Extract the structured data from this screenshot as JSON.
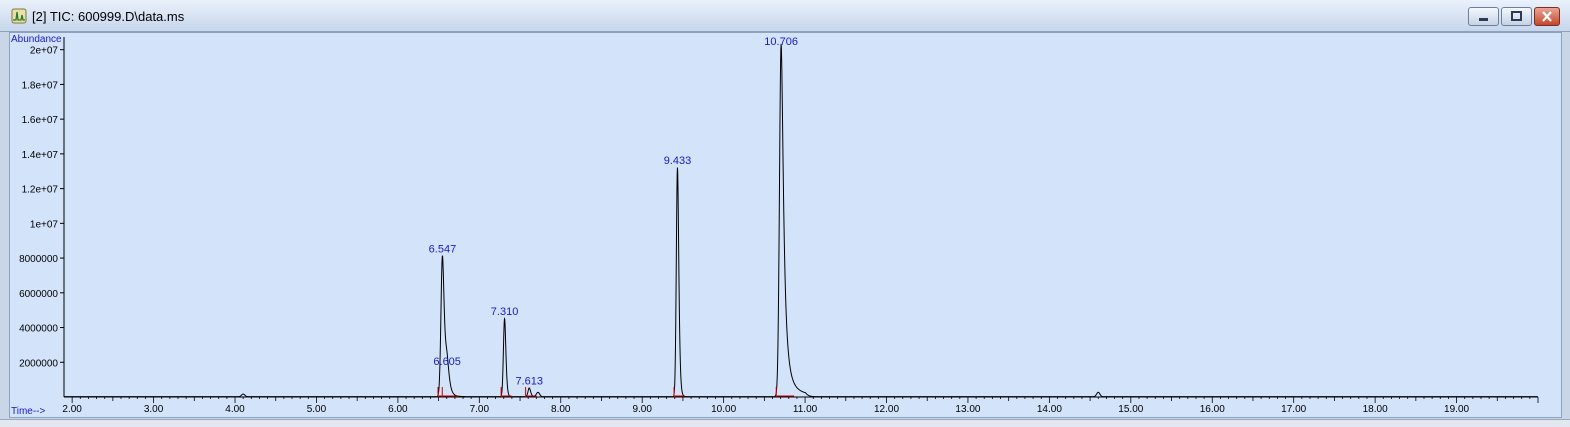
{
  "window": {
    "title": "[2] TIC: 600999.D\\data.ms",
    "icon": "chromatogram-app-icon",
    "buttons": [
      "minimize-icon",
      "restore-icon",
      "close-icon"
    ]
  },
  "chart_data": {
    "type": "line",
    "ylabel": "Abundance",
    "xlabel": "Time-->",
    "xlim": [
      1.9,
      20.0
    ],
    "ylim": [
      0,
      20500000
    ],
    "x_ticks": [
      "2.00",
      "3.00",
      "4.00",
      "5.00",
      "6.00",
      "7.00",
      "8.00",
      "9.00",
      "10.00",
      "11.00",
      "12.00",
      "13.00",
      "14.00",
      "15.00",
      "16.00",
      "17.00",
      "18.00",
      "19.00"
    ],
    "y_ticks": [
      {
        "value": 2000000,
        "label": "2000000"
      },
      {
        "value": 4000000,
        "label": "4000000"
      },
      {
        "value": 6000000,
        "label": "6000000"
      },
      {
        "value": 8000000,
        "label": "8000000"
      },
      {
        "value": 10000000,
        "label": "1e+07"
      },
      {
        "value": 12000000,
        "label": "1.2e+07"
      },
      {
        "value": 14000000,
        "label": "1.4e+07"
      },
      {
        "value": 16000000,
        "label": "1.6e+07"
      },
      {
        "value": 18000000,
        "label": "1.8e+07"
      },
      {
        "value": 20000000,
        "label": "2e+07"
      }
    ],
    "peaks": [
      {
        "rt": 6.547,
        "label": "6.547",
        "height": 8100000,
        "width": 0.018,
        "tail": 0.05
      },
      {
        "rt": 6.605,
        "label": "6.605",
        "height": 1600000,
        "width": 0.02,
        "tail": 0.06
      },
      {
        "rt": 7.31,
        "label": "7.310",
        "height": 4500000,
        "width": 0.014,
        "tail": 0.03
      },
      {
        "rt": 7.613,
        "label": "7.613",
        "height": 500000,
        "width": 0.015,
        "tail": 0.03
      },
      {
        "rt": 9.433,
        "label": "9.433",
        "height": 13200000,
        "width": 0.014,
        "tail": 0.035
      },
      {
        "rt": 10.706,
        "label": "10.706",
        "height": 20300000,
        "width": 0.02,
        "tail": 0.08
      }
    ],
    "minor_bumps": [
      {
        "rt": 4.1,
        "height": 150000
      },
      {
        "rt": 7.72,
        "height": 250000
      },
      {
        "rt": 14.6,
        "height": 250000
      }
    ],
    "colors": {
      "trace": "#000000",
      "axis": "#000000",
      "labels": "#1a1acc",
      "baseline": "#cc0000",
      "background": "#d3e3fa"
    }
  }
}
